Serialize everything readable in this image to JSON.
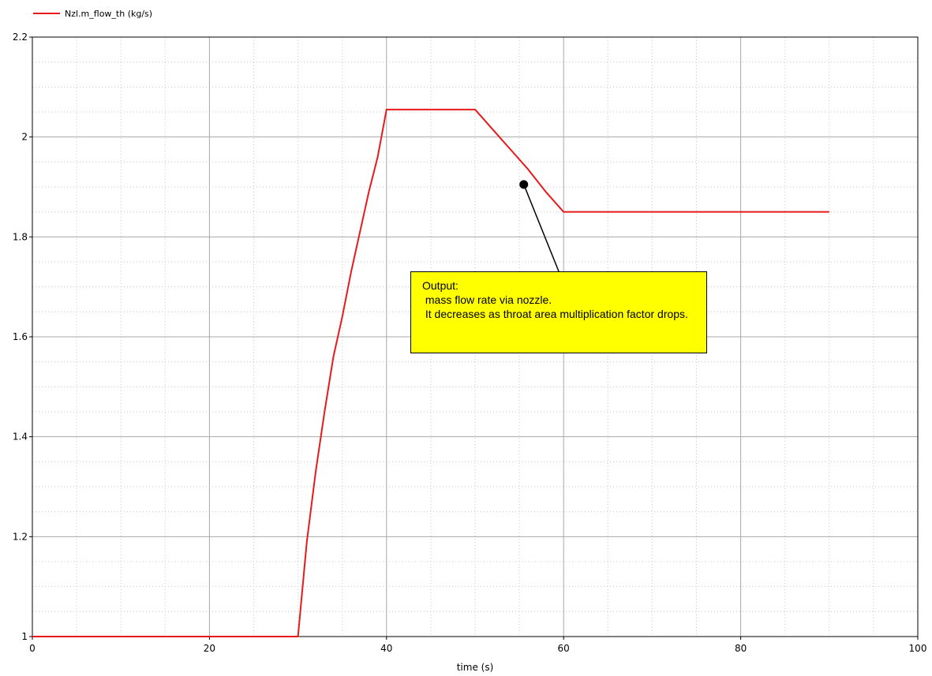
{
  "legend": {
    "label": "Nzl.m_flow_th (kg/s)",
    "color": "#e8191b"
  },
  "annotation": {
    "text": "Output:\n mass flow rate via nozzle.\n It decreases as throat area multiplication factor drops.",
    "background": "#ffff00"
  },
  "chart_data": {
    "type": "line",
    "xlabel": "time (s)",
    "ylabel": "",
    "xlim": [
      0,
      100
    ],
    "ylim": [
      1,
      2.2
    ],
    "x_ticks": [
      0,
      20,
      40,
      60,
      80,
      100
    ],
    "y_ticks": [
      1,
      1.2,
      1.4,
      1.6,
      1.8,
      2,
      2.2
    ],
    "x_tick_labels": [
      "0",
      "20",
      "40",
      "60",
      "80",
      "100"
    ],
    "y_tick_labels": [
      "1",
      "1.2",
      "1.4",
      "1.6",
      "1.8",
      "2",
      "2.2"
    ],
    "grid": true,
    "legend_position": "top-left",
    "series": [
      {
        "name": "Nzl.m_flow_th (kg/s)",
        "color": "#e8191b",
        "x": [
          0,
          30,
          31,
          32,
          33,
          34,
          35,
          36,
          37,
          38,
          39,
          40,
          45,
          50,
          52,
          54,
          56,
          58,
          60,
          70,
          80,
          90
        ],
        "y": [
          1.0,
          1.0,
          1.19,
          1.33,
          1.45,
          1.56,
          1.64,
          1.73,
          1.81,
          1.89,
          1.96,
          2.055,
          2.055,
          2.055,
          2.015,
          1.975,
          1.935,
          1.89,
          1.85,
          1.85,
          1.85,
          1.85
        ]
      }
    ],
    "markers": [
      {
        "x": 55.5,
        "y": 1.905
      }
    ]
  }
}
